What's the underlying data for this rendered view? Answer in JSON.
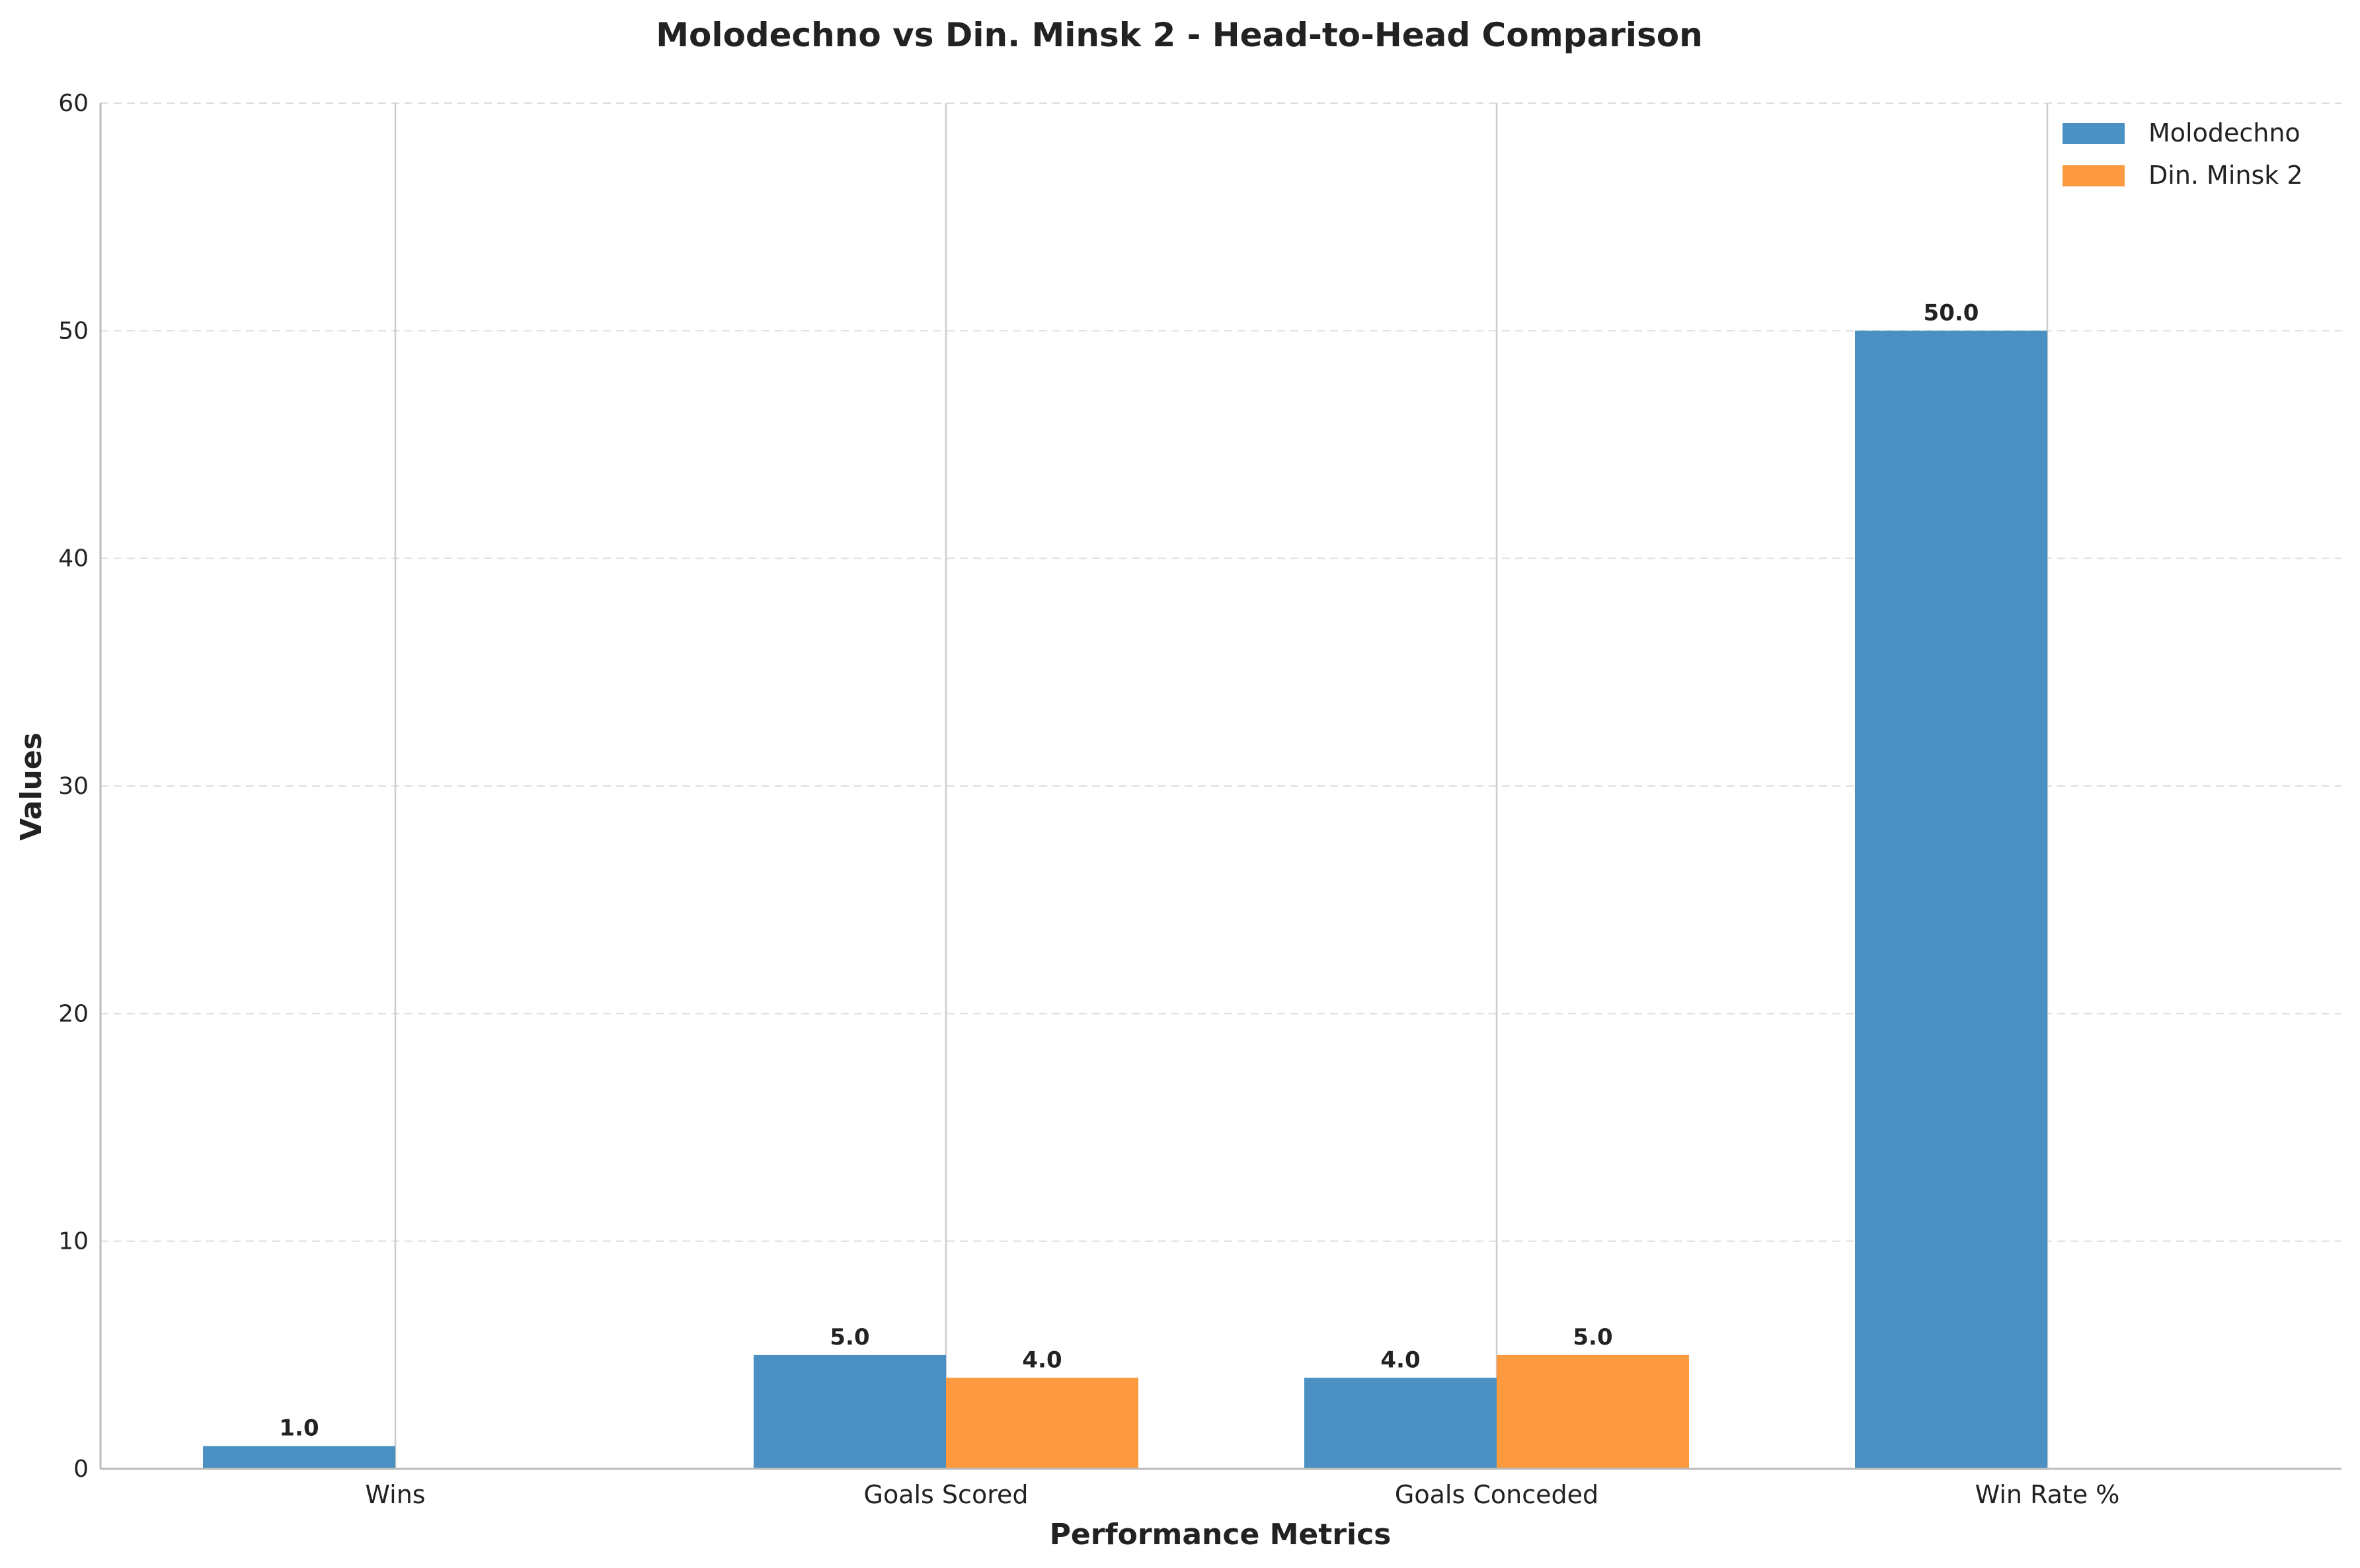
{
  "chart_data": {
    "type": "bar",
    "title": "Molodechno vs Din. Minsk 2 - Head-to-Head Comparison",
    "xlabel": "Performance Metrics",
    "ylabel": "Values",
    "categories": [
      "Wins",
      "Goals Scored",
      "Goals Conceded",
      "Win Rate %"
    ],
    "series": [
      {
        "name": "Molodechno",
        "values": [
          1.0,
          5.0,
          4.0,
          50.0
        ],
        "color": "#4a90c2",
        "labels": [
          "1.0",
          "5.0",
          "4.0",
          "50.0"
        ]
      },
      {
        "name": "Din. Minsk 2",
        "values": [
          0,
          4.0,
          5.0,
          0
        ],
        "color": "#fd9a40",
        "labels": [
          "",
          "4.0",
          "5.0",
          ""
        ]
      }
    ],
    "ylim": [
      0,
      60
    ],
    "yticks": [
      0,
      10,
      20,
      30,
      40,
      50,
      60
    ],
    "ytick_labels": [
      "0",
      "10",
      "20",
      "30",
      "40",
      "50",
      "60"
    ],
    "grid": "y-dashed",
    "legend": "top-right"
  }
}
